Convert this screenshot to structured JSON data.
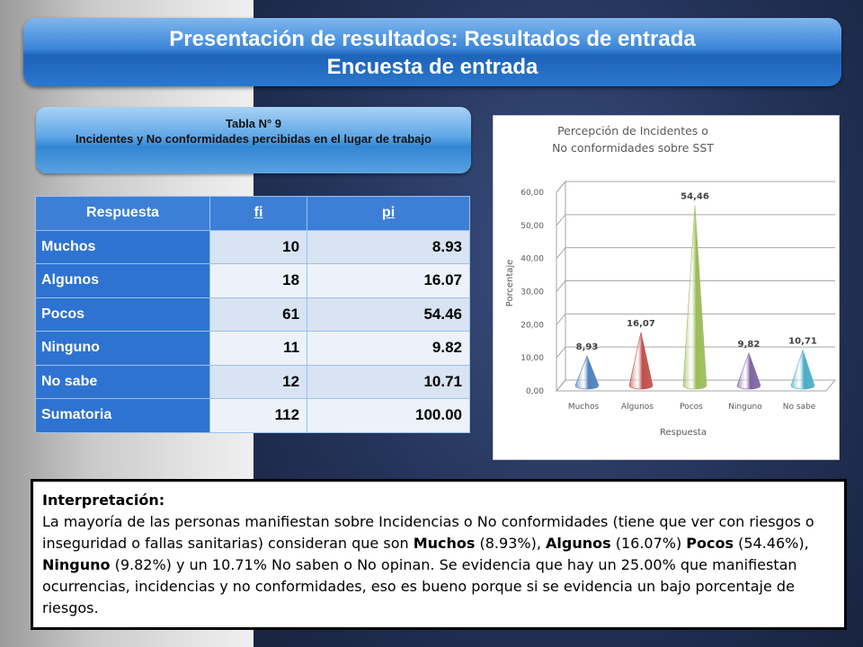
{
  "header": {
    "title": "Presentación de resultados: Resultados de entrada",
    "subtitle": "Encuesta de entrada"
  },
  "caption": {
    "table_no": "Tabla N° 9",
    "title": "Incidentes y No conformidades percibidas en el lugar de trabajo"
  },
  "table": {
    "headers": [
      "Respuesta",
      "fi",
      "pi"
    ],
    "rows": [
      {
        "label": "Muchos",
        "f": "10",
        "p": "8.93"
      },
      {
        "label": "Algunos",
        "f": "18",
        "p": "16.07"
      },
      {
        "label": "Pocos",
        "f": "61",
        "p": "54.46"
      },
      {
        "label": "Ninguno",
        "f": "11",
        "p": "9.82"
      },
      {
        "label": "No sabe",
        "f": "12",
        "p": "10.71"
      },
      {
        "label": "Sumatoria",
        "f": "112",
        "p": "100.00"
      }
    ]
  },
  "chart_data": {
    "type": "bar",
    "shape": "cone",
    "title": "Percepción de Incidentes o No conformidades sobre SST",
    "xlabel": "Respuesta",
    "ylabel": "Porcentaje",
    "categories": [
      "Muchos",
      "Algunos",
      "Pocos",
      "Ninguno",
      "No sabe"
    ],
    "values": [
      8.93,
      16.07,
      54.46,
      9.82,
      10.71
    ],
    "data_labels": [
      "8,93",
      "16,07",
      "54,46",
      "9,82",
      "10,71"
    ],
    "colors": [
      "#4f81bd",
      "#c0504d",
      "#9bbb59",
      "#8064a2",
      "#4bacc6"
    ],
    "yticks": [
      "0,00",
      "10,00",
      "20,00",
      "30,00",
      "40,00",
      "50,00",
      "60,00"
    ],
    "ylim": [
      0,
      60
    ],
    "grid": true,
    "legend": "none"
  },
  "interpretation": {
    "heading": "Interpretación:",
    "t1": "La mayoría de las personas manifiestan sobre Incidencias o No conformidades (tiene que ver con riesgos o inseguridad o fallas sanitarias) consideran que son ",
    "b1": "Muchos",
    "t2": " (8.93%), ",
    "b2": "Algunos",
    "t3": " (16.07%) ",
    "b3": "Pocos",
    "t4": " (54.46%), ",
    "b4": "Ninguno",
    "t5": " (9.82%) y un 10.71% No saben o No opinan. Se evidencia que hay un 25.00% que manifiestan ocurrencias, incidencias y no conformidades, eso es bueno porque si se evidencia un bajo porcentaje de riesgos."
  }
}
